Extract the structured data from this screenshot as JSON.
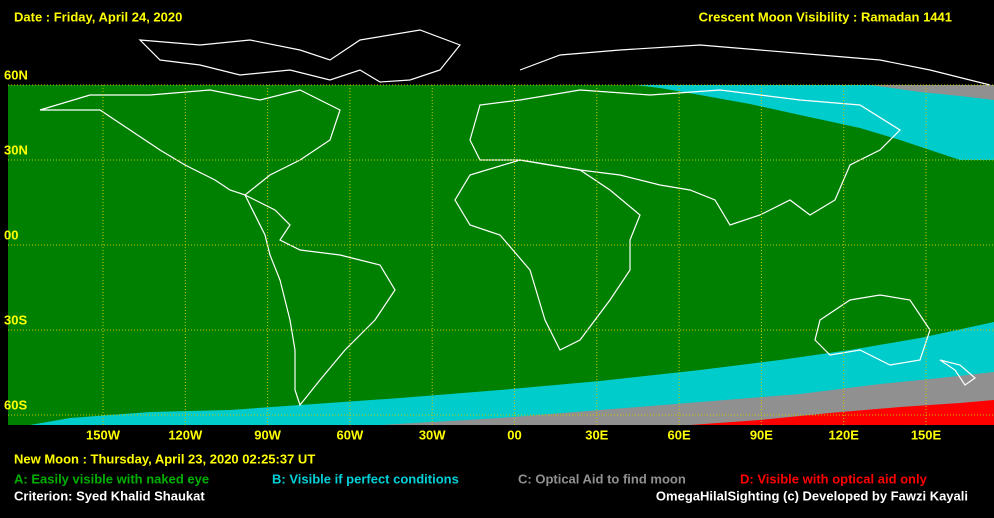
{
  "header": {
    "date": "Date : Friday, April 24, 2020",
    "title": "Crescent Moon Visibility : Ramadan  1441"
  },
  "map": {
    "lat_labels": [
      "60N",
      "30N",
      "00",
      "30S",
      "60S"
    ],
    "lon_labels": [
      "150W",
      "120W",
      "90W",
      "60W",
      "30W",
      "00",
      "30E",
      "60E",
      "90E",
      "120E",
      "150E"
    ]
  },
  "footer": {
    "new_moon": "New Moon : Thursday, April 23, 2020  02:25:37  UT",
    "criterion": "Criterion: Syed Khalid Shaukat",
    "credit": "OmegaHilalSighting  (c) Developed by Fawzi Kayali"
  },
  "legend": [
    {
      "label": "A: Easily visible with naked eye",
      "color": "#00b000"
    },
    {
      "label": "B: Visible if perfect conditions",
      "color": "#00d0d8"
    },
    {
      "label": "C: Optical Aid to find moon",
      "color": "#909090"
    },
    {
      "label": "D: Visible with optical aid only",
      "color": "#ff0000"
    }
  ]
}
